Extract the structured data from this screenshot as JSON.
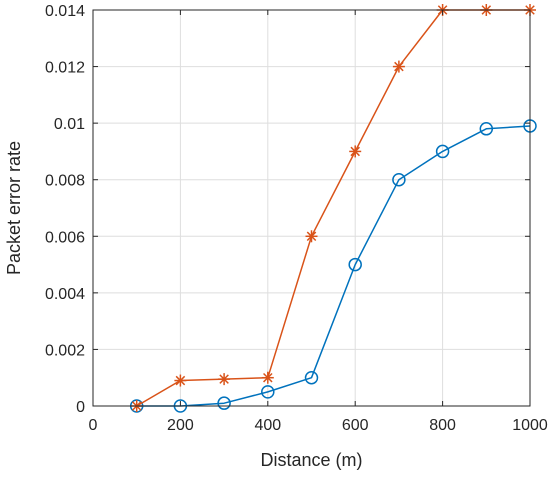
{
  "chart_data": {
    "type": "line",
    "title": "",
    "xlabel": "Distance (m)",
    "ylabel": "Packet error rate",
    "xlim": [
      0,
      1000
    ],
    "ylim": [
      0,
      0.014
    ],
    "xticks": [
      0,
      200,
      400,
      600,
      800,
      1000
    ],
    "xtick_labels": [
      "0",
      "200",
      "400",
      "600",
      "800",
      "1000"
    ],
    "yticks": [
      0,
      0.002,
      0.004,
      0.006,
      0.008,
      0.01,
      0.012,
      0.014
    ],
    "ytick_labels": [
      "0",
      "0.002",
      "0.004",
      "0.006",
      "0.008",
      "0.01",
      "0.012",
      "0.014"
    ],
    "grid": true,
    "series": [
      {
        "color": "#0072BD",
        "marker": "circle",
        "x": [
          100,
          200,
          300,
          400,
          500,
          600,
          700,
          800,
          900,
          1000
        ],
        "values": [
          0,
          0,
          0.0001,
          0.0005,
          0.001,
          0.005,
          0.008,
          0.009,
          0.0098,
          0.0099
        ]
      },
      {
        "color": "#D95319",
        "marker": "asterisk",
        "x": [
          100,
          200,
          300,
          400,
          500,
          600,
          700,
          800,
          900,
          1000
        ],
        "values": [
          0,
          0.0009,
          0.00095,
          0.001,
          0.006,
          0.009,
          0.012,
          0.014,
          0.014,
          0.014
        ]
      }
    ]
  }
}
